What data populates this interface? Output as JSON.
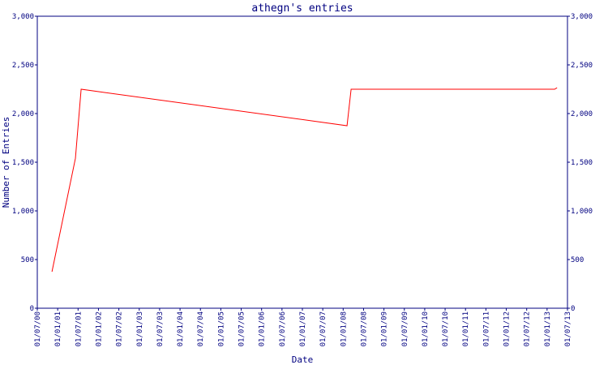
{
  "chart_data": {
    "type": "line",
    "title": "athegn's entries",
    "x_label": "Date",
    "y_label": "Number of Entries",
    "color": "#ff0000",
    "axis_color": "#000080",
    "x": [
      0.72,
      1.87,
      2.15,
      15.19,
      15.39,
      25.37,
      25.49
    ],
    "values": [
      375,
      1540,
      2250,
      1875,
      2250,
      2250,
      2265
    ],
    "xlim": [
      0,
      26
    ],
    "xticks": [
      {
        "value": 0,
        "label": "01/07/00"
      },
      {
        "value": 1,
        "label": "01/01/01"
      },
      {
        "value": 2,
        "label": "01/07/01"
      },
      {
        "value": 3,
        "label": "01/01/02"
      },
      {
        "value": 4,
        "label": "01/07/02"
      },
      {
        "value": 5,
        "label": "01/01/03"
      },
      {
        "value": 6,
        "label": "01/07/03"
      },
      {
        "value": 7,
        "label": "01/01/04"
      },
      {
        "value": 8,
        "label": "01/07/04"
      },
      {
        "value": 9,
        "label": "01/01/05"
      },
      {
        "value": 10,
        "label": "01/07/05"
      },
      {
        "value": 11,
        "label": "01/01/06"
      },
      {
        "value": 12,
        "label": "01/07/06"
      },
      {
        "value": 13,
        "label": "01/01/07"
      },
      {
        "value": 14,
        "label": "01/07/07"
      },
      {
        "value": 15,
        "label": "01/01/08"
      },
      {
        "value": 16,
        "label": "01/07/08"
      },
      {
        "value": 17,
        "label": "01/01/09"
      },
      {
        "value": 18,
        "label": "01/07/09"
      },
      {
        "value": 19,
        "label": "01/01/10"
      },
      {
        "value": 20,
        "label": "01/07/10"
      },
      {
        "value": 21,
        "label": "01/01/11"
      },
      {
        "value": 22,
        "label": "01/07/11"
      },
      {
        "value": 23,
        "label": "01/01/12"
      },
      {
        "value": 24,
        "label": "01/07/12"
      },
      {
        "value": 25,
        "label": "01/01/13"
      },
      {
        "value": 26,
        "label": "01/07/13"
      }
    ],
    "ylim": [
      0,
      3000
    ],
    "yticks": [
      0,
      500,
      {
        "value": 1000,
        "label": "1,000"
      },
      {
        "value": 1500,
        "label": "1,500"
      },
      {
        "value": 2000,
        "label": "2,000"
      },
      {
        "value": 2500,
        "label": "2,500"
      },
      {
        "value": 3000,
        "label": "3,000"
      }
    ],
    "y2lim": [
      0,
      3000
    ],
    "y2ticks": [
      0,
      500,
      {
        "value": 1000,
        "label": "1,000"
      },
      {
        "value": 1500,
        "label": "1,500"
      },
      {
        "value": 2000,
        "label": "2,000"
      },
      {
        "value": 2500,
        "label": "2,500"
      },
      {
        "value": 3000,
        "label": "3,000"
      }
    ]
  }
}
